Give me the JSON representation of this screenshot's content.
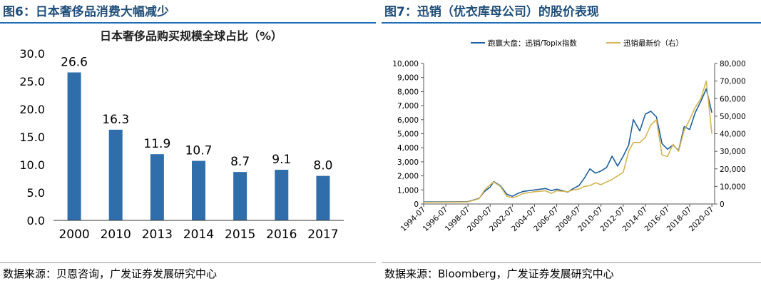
{
  "left_panel": {
    "figure_title": "图6：日本奢侈品消费大幅减少",
    "source": "数据来源：贝恩咨询，广发证券发展研究中心"
  },
  "right_panel": {
    "figure_title": "图7：迅销（优衣库母公司）的股价表现",
    "source": "数据来源：Bloomberg，广发证券发展研究中心"
  },
  "colors": {
    "bar": "#2f6eab",
    "series_blue": "#1f5f9e",
    "series_gold": "#d4b551",
    "title_blue": "#1f4e79"
  },
  "chart_data": [
    {
      "type": "bar",
      "title": "日本奢侈品购买规模全球占比（%）",
      "categories": [
        "2000",
        "2010",
        "2013",
        "2014",
        "2015",
        "2016",
        "2017"
      ],
      "values": [
        26.6,
        16.3,
        11.9,
        10.7,
        8.7,
        9.1,
        8.0
      ],
      "value_labels": [
        "26.6",
        "16.3",
        "11.9",
        "10.7",
        "8.7",
        "9.1",
        "8.0"
      ],
      "ylim": [
        0,
        30
      ],
      "yticks": [
        "0.0",
        "5.0",
        "10.0",
        "15.0",
        "20.0",
        "25.0",
        "30.0"
      ],
      "grid": false
    },
    {
      "type": "line",
      "legend": "top-center",
      "xticks": [
        "1994-07",
        "1996-07",
        "1998-07",
        "2000-07",
        "2002-07",
        "2004-07",
        "2006-07",
        "2008-07",
        "2010-07",
        "2012-07",
        "2014-07",
        "2016-07",
        "2018-07",
        "2020-07"
      ],
      "y_left_ticks": [
        "0",
        "1,000",
        "2,000",
        "3,000",
        "4,000",
        "5,000",
        "6,000",
        "7,000",
        "8,000",
        "9,000",
        "10,000"
      ],
      "y_right_ticks": [
        "0",
        "10,000",
        "20,000",
        "30,000",
        "40,000",
        "50,000",
        "60,000",
        "70,000",
        "80,000"
      ],
      "ylim_left": [
        0,
        10000
      ],
      "ylim_right": [
        0,
        80000
      ],
      "grid": false,
      "series": [
        {
          "name": "跑赢大盘：迅销/Topix指数",
          "axis": "left",
          "x": [
            "1994-07",
            "1996-07",
            "1998-07",
            "1999-07",
            "2000-01",
            "2000-07",
            "2000-11",
            "2001-06",
            "2002-01",
            "2002-07",
            "2003-01",
            "2003-07",
            "2004-07",
            "2005-07",
            "2006-01",
            "2006-07",
            "2007-07",
            "2008-01",
            "2008-07",
            "2009-01",
            "2009-07",
            "2010-01",
            "2010-07",
            "2011-01",
            "2011-07",
            "2012-01",
            "2012-07",
            "2013-01",
            "2013-06",
            "2014-01",
            "2014-07",
            "2015-01",
            "2015-07",
            "2016-01",
            "2016-07",
            "2017-01",
            "2017-07",
            "2018-01",
            "2018-07",
            "2019-01",
            "2019-07",
            "2020-01",
            "2020-07"
          ],
          "y": [
            150,
            150,
            170,
            400,
            900,
            1200,
            1600,
            1300,
            700,
            550,
            750,
            900,
            1000,
            1100,
            950,
            1050,
            850,
            1100,
            1300,
            1850,
            2500,
            2200,
            2350,
            2600,
            3400,
            2700,
            3400,
            4200,
            6000,
            5200,
            6400,
            6600,
            6200,
            4300,
            3900,
            4200,
            3800,
            5500,
            5300,
            6500,
            7300,
            8200,
            6500
          ]
        },
        {
          "name": "迅销最新价（右）",
          "axis": "right",
          "x": [
            "1994-07",
            "1996-07",
            "1998-07",
            "1999-07",
            "2000-01",
            "2000-07",
            "2000-11",
            "2001-06",
            "2002-01",
            "2002-07",
            "2003-01",
            "2003-07",
            "2004-07",
            "2005-07",
            "2006-01",
            "2006-07",
            "2007-07",
            "2008-01",
            "2008-07",
            "2009-01",
            "2009-07",
            "2010-01",
            "2010-07",
            "2011-01",
            "2011-07",
            "2012-01",
            "2012-07",
            "2013-01",
            "2013-06",
            "2014-01",
            "2014-07",
            "2015-01",
            "2015-07",
            "2016-01",
            "2016-07",
            "2017-01",
            "2017-07",
            "2018-01",
            "2018-07",
            "2019-01",
            "2019-07",
            "2020-01",
            "2020-07"
          ],
          "y": [
            1000,
            1000,
            1200,
            3000,
            8000,
            11000,
            12500,
            10000,
            4500,
            3500,
            4500,
            6000,
            7000,
            7500,
            6000,
            7500,
            7000,
            8000,
            8500,
            10000,
            10500,
            12000,
            11000,
            12500,
            14000,
            16000,
            18000,
            30000,
            35000,
            35000,
            38000,
            45000,
            48000,
            28000,
            27000,
            34000,
            30000,
            42000,
            48000,
            55000,
            60000,
            70000,
            40000
          ]
        }
      ]
    }
  ]
}
